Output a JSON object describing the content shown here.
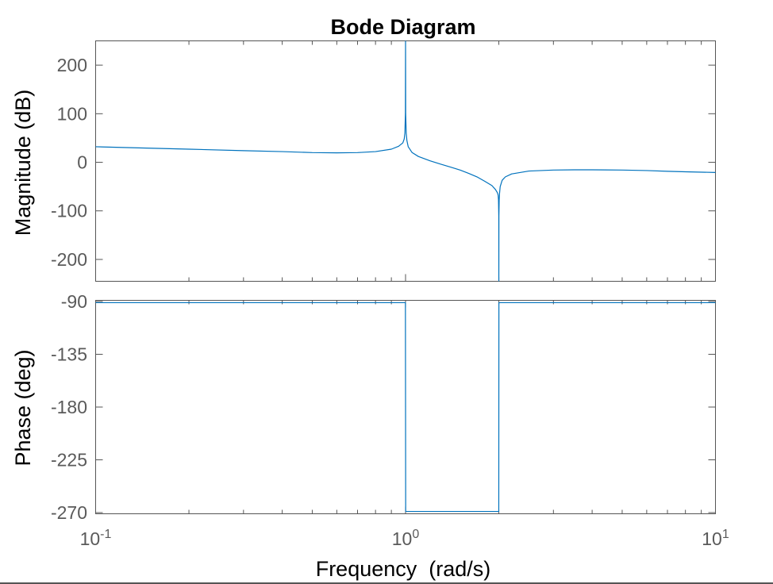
{
  "chart_data": [
    {
      "type": "line",
      "title": "Bode Diagram",
      "xlabel": "",
      "ylabel": "Magnitude (dB)",
      "xscale": "log",
      "xlim": [
        0.1,
        10
      ],
      "ylim": [
        -245,
        250
      ],
      "yticks": [
        200,
        100,
        0,
        -100,
        -200
      ],
      "ytick_labels": [
        "200",
        "100",
        "0",
        "-100",
        "-200"
      ],
      "grid": false,
      "color": "#0072BD",
      "series": [
        {
          "x": [
            0.1,
            0.15,
            0.2,
            0.3,
            0.4,
            0.5,
            0.6,
            0.7,
            0.8,
            0.9,
            0.95,
            0.98,
            0.99,
            0.995,
            0.999,
            1.0,
            1.001,
            1.005,
            1.01,
            1.02,
            1.05,
            1.1,
            1.2,
            1.3,
            1.4,
            1.5,
            1.6,
            1.7,
            1.8,
            1.9,
            1.95,
            1.98,
            1.99,
            1.995,
            1.999,
            2.0,
            2.001,
            2.005,
            2.01,
            2.02,
            2.05,
            2.1,
            2.2,
            2.5,
            3,
            3.5,
            4,
            5,
            6,
            7,
            8,
            10
          ],
          "y": [
            32,
            29,
            27,
            24,
            22,
            20,
            19.5,
            20,
            22,
            27,
            33,
            40,
            48,
            60,
            100,
            250,
            100,
            60,
            45,
            32,
            20,
            12,
            3,
            -4,
            -10,
            -16,
            -23,
            -30,
            -39,
            -48,
            -56,
            -63,
            -68,
            -78,
            -110,
            -245,
            -110,
            -78,
            -65,
            -50,
            -37,
            -30,
            -24,
            -18,
            -16,
            -15.5,
            -15.5,
            -16,
            -17,
            -18.5,
            -19.5,
            -21
          ]
        }
      ]
    },
    {
      "type": "line",
      "xlabel": "Frequency  (rad/s)",
      "ylabel": "Phase (deg)",
      "xscale": "log",
      "xlim": [
        0.1,
        10
      ],
      "ylim": [
        -271,
        -89
      ],
      "xtick_labels": [
        "10-1",
        "100",
        "101"
      ],
      "xtick_values": [
        0.1,
        1,
        10
      ],
      "yticks": [
        -90,
        -135,
        -180,
        -225,
        -270
      ],
      "ytick_labels": [
        "-90",
        "-135",
        "-180",
        "-225",
        "-270"
      ],
      "grid": false,
      "color": "#0072BD",
      "series": [
        {
          "x": [
            0.1,
            0.999,
            1.0,
            1.001,
            1.999,
            2.0,
            2.001,
            10
          ],
          "y": [
            -91,
            -91,
            -180,
            -269,
            -269,
            -180,
            -91,
            -91
          ]
        }
      ]
    }
  ]
}
